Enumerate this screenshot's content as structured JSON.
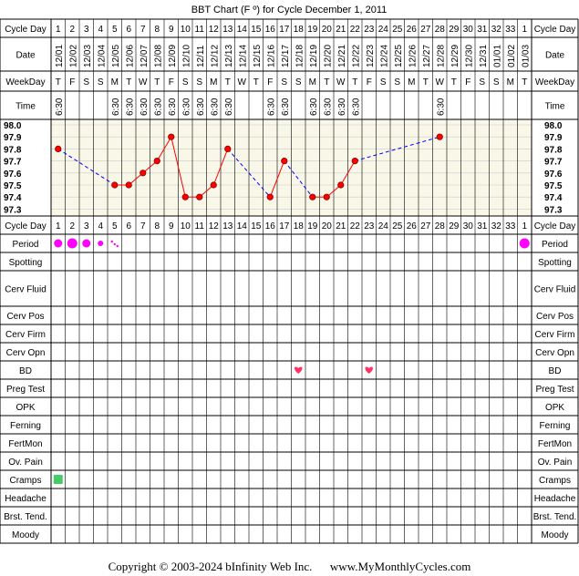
{
  "title": "BBT Chart (F º) for Cycle December 1, 2011",
  "row_labels": {
    "cycle_day": "Cycle Day",
    "date": "Date",
    "weekday": "WeekDay",
    "time": "Time"
  },
  "chart_data": {
    "type": "line",
    "title": "BBT Chart (F º) for Cycle December 1, 2011",
    "cycle_days": [
      "1",
      "2",
      "3",
      "4",
      "5",
      "6",
      "7",
      "8",
      "9",
      "10",
      "11",
      "12",
      "13",
      "14",
      "15",
      "16",
      "17",
      "18",
      "19",
      "20",
      "21",
      "22",
      "23",
      "24",
      "25",
      "26",
      "27",
      "28",
      "29",
      "30",
      "31",
      "32",
      "33",
      "1"
    ],
    "dates": [
      "12/01",
      "12/02",
      "12/03",
      "12/04",
      "12/05",
      "12/06",
      "12/07",
      "12/08",
      "12/09",
      "12/10",
      "12/11",
      "12/12",
      "12/13",
      "12/14",
      "12/15",
      "12/16",
      "12/17",
      "12/18",
      "12/19",
      "12/20",
      "12/21",
      "12/22",
      "12/23",
      "12/24",
      "12/25",
      "12/26",
      "12/27",
      "12/28",
      "12/29",
      "12/30",
      "12/31",
      "01/01",
      "01/02",
      "01/03"
    ],
    "weekdays": [
      "T",
      "F",
      "S",
      "S",
      "M",
      "T",
      "W",
      "T",
      "F",
      "S",
      "S",
      "M",
      "T",
      "W",
      "T",
      "F",
      "S",
      "S",
      "M",
      "T",
      "W",
      "T",
      "F",
      "S",
      "S",
      "M",
      "T",
      "W",
      "T",
      "F",
      "S",
      "S",
      "M",
      "T"
    ],
    "times": [
      "6:30",
      "",
      "",
      "",
      "6:30",
      "6:30",
      "6:30",
      "6:30",
      "6:30",
      "6:30",
      "6:30",
      "6:30",
      "6:30",
      "",
      "",
      "6:30",
      "6:30",
      "",
      "6:30",
      "6:30",
      "6:30",
      "6:30",
      "",
      "",
      "",
      "",
      "",
      "6:30",
      "",
      "",
      "",
      "",
      "",
      ""
    ],
    "temps": [
      97.8,
      null,
      null,
      null,
      97.5,
      97.5,
      97.6,
      97.7,
      97.9,
      97.4,
      97.4,
      97.5,
      97.8,
      null,
      null,
      97.4,
      97.7,
      null,
      97.4,
      97.4,
      97.5,
      97.7,
      null,
      null,
      null,
      null,
      null,
      97.9,
      null,
      null,
      null,
      null,
      null,
      null
    ],
    "y_ticks": [
      "98.0",
      "97.9",
      "97.8",
      "97.7",
      "97.6",
      "97.5",
      "97.4",
      "97.3"
    ],
    "ylim": [
      97.3,
      98.0
    ],
    "colors": {
      "line": "#ff0000",
      "point": "#ff0000",
      "gap_line": "#0000ff",
      "plot_bg": "#f8f7e8",
      "grid": "#cccccc"
    }
  },
  "tracking_rows": [
    {
      "label": "Cycle Day",
      "kind": "cycleday"
    },
    {
      "label": "Period",
      "kind": "period"
    },
    {
      "label": "Spotting",
      "kind": "empty"
    },
    {
      "label": "Cerv Fluid",
      "kind": "empty",
      "tall": true
    },
    {
      "label": "Cerv Pos",
      "kind": "empty"
    },
    {
      "label": "Cerv Firm",
      "kind": "empty"
    },
    {
      "label": "Cerv Opn",
      "kind": "empty"
    },
    {
      "label": "BD",
      "kind": "bd"
    },
    {
      "label": "Preg Test",
      "kind": "empty"
    },
    {
      "label": "OPK",
      "kind": "empty"
    },
    {
      "label": "Ferning",
      "kind": "empty"
    },
    {
      "label": "FertMon",
      "kind": "empty"
    },
    {
      "label": "Ov. Pain",
      "kind": "empty"
    },
    {
      "label": "Cramps",
      "kind": "cramps"
    },
    {
      "label": "Headache",
      "kind": "empty"
    },
    {
      "label": "Brst. Tend.",
      "kind": "empty"
    },
    {
      "label": "Moody",
      "kind": "empty"
    }
  ],
  "period_marks": [
    {
      "day_index": 0,
      "size": "medium"
    },
    {
      "day_index": 1,
      "size": "large"
    },
    {
      "day_index": 2,
      "size": "medium"
    },
    {
      "day_index": 3,
      "size": "small"
    },
    {
      "day_index": 4,
      "size": "spotting"
    },
    {
      "day_index": 33,
      "size": "large"
    }
  ],
  "bd_days": [
    17,
    22
  ],
  "cramps_days": [
    0
  ],
  "icons": {
    "period": "period-dot-icon",
    "bd": "heart-icon",
    "cramps": "cramps-square-icon"
  },
  "colors": {
    "period": "#ff00ff",
    "bd": "#ff3366",
    "cramps": "#44cc66"
  },
  "footer": {
    "copyright": "Copyright © 2003-2024 bInfinity Web Inc.",
    "site": "www.MyMonthlyCycles.com"
  }
}
